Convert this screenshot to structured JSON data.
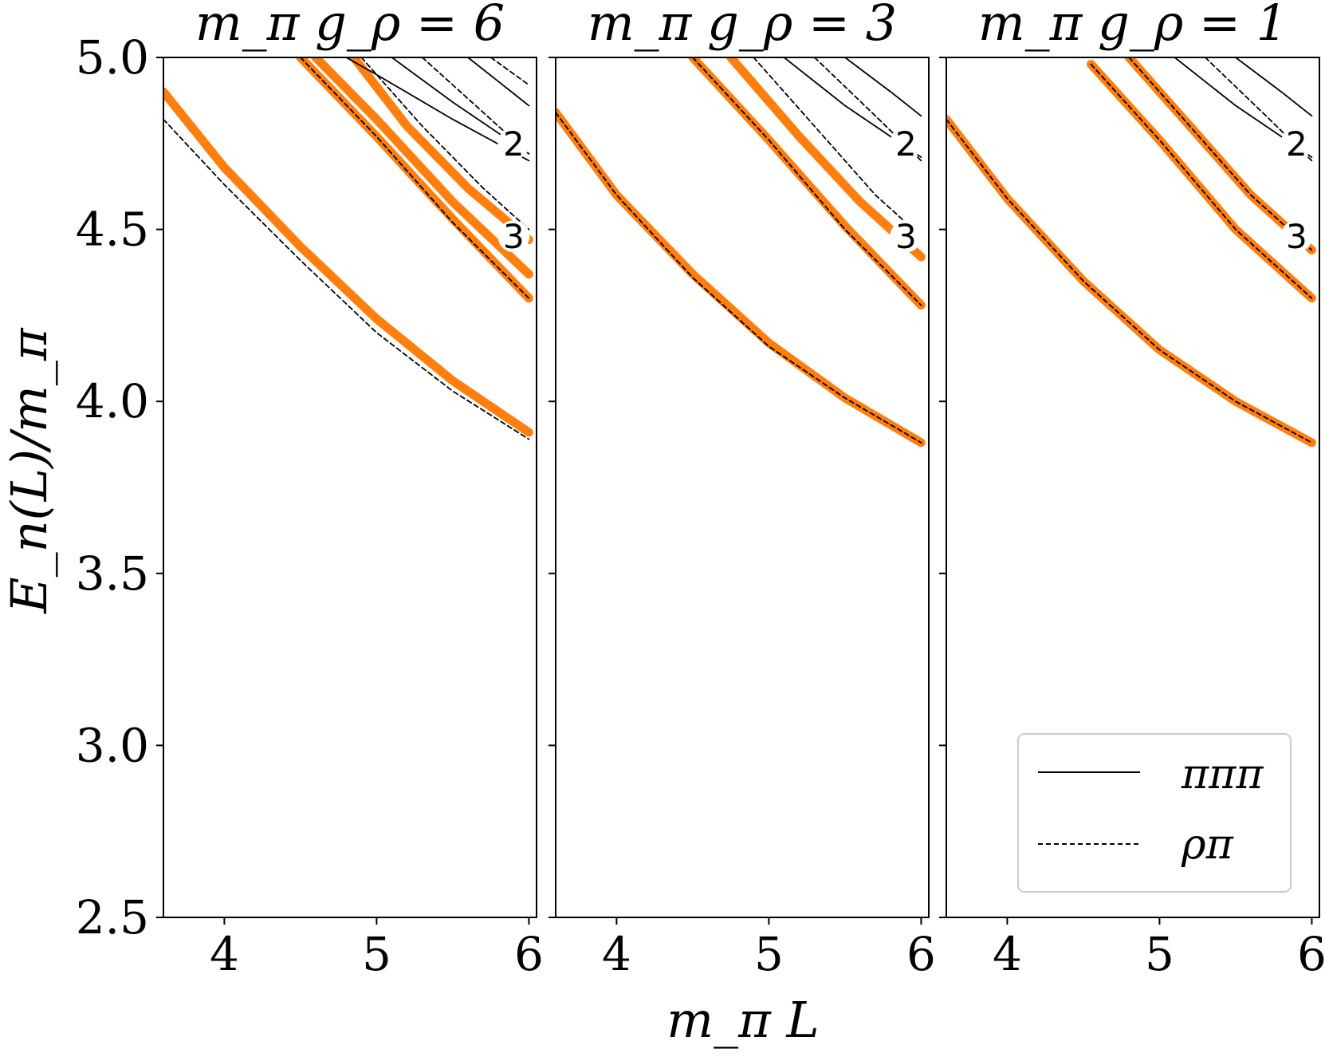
{
  "figure": {
    "ylabel": "E_n(L)/m_π",
    "xlabel": "m_π L",
    "y_ticks": [
      "2.5",
      "3.0",
      "3.5",
      "4.0",
      "4.5",
      "5.0"
    ],
    "x_ticks": [
      "4",
      "5",
      "6"
    ],
    "legend": [
      {
        "label": "πππ",
        "style": "solid"
      },
      {
        "label": "ρπ",
        "style": "dashed"
      }
    ],
    "colors": {
      "interacting": "#ff7f0e",
      "free": "#000000",
      "background": "#ffffff"
    }
  },
  "chart_data": [
    {
      "type": "line",
      "title": "m_π g_ρ = 6",
      "xlim": [
        3.6,
        6.05
      ],
      "ylim": [
        2.5,
        5.0
      ],
      "annotations": [
        "2",
        "3"
      ],
      "series": [
        {
          "name": "πππ",
          "style": "solid",
          "x": [
            4.8,
            5.0,
            5.5,
            6.0
          ],
          "y": [
            5.0,
            4.95,
            4.82,
            4.7
          ]
        },
        {
          "name": "πππ",
          "style": "solid",
          "x": [
            5.1,
            5.5,
            6.0
          ],
          "y": [
            5.0,
            4.87,
            4.72
          ]
        },
        {
          "name": "πππ",
          "style": "solid",
          "x": [
            5.6,
            5.8,
            6.0
          ],
          "y": [
            5.0,
            4.93,
            4.86
          ]
        },
        {
          "name": "ρπ",
          "style": "dashed",
          "x": [
            3.6,
            4.0,
            4.5,
            5.0,
            5.5,
            6.0
          ],
          "y": [
            4.82,
            4.63,
            4.41,
            4.2,
            4.03,
            3.89
          ]
        },
        {
          "name": "ρπ",
          "style": "dashed",
          "x": [
            4.5,
            5.0,
            5.5,
            6.0
          ],
          "y": [
            5.0,
            4.77,
            4.52,
            4.3
          ]
        },
        {
          "name": "ρπ",
          "style": "dashed",
          "x": [
            4.9,
            5.3,
            5.7,
            6.0
          ],
          "y": [
            5.0,
            4.8,
            4.62,
            4.5
          ]
        },
        {
          "name": "ρπ",
          "style": "dashed",
          "x": [
            5.3,
            5.6,
            6.0
          ],
          "y": [
            5.0,
            4.88,
            4.72
          ]
        },
        {
          "name": "ρπ",
          "style": "dashed",
          "x": [
            5.75,
            6.0
          ],
          "y": [
            5.0,
            4.92
          ]
        },
        {
          "name": "interacting",
          "style": "band",
          "x": [
            3.6,
            4.0,
            4.5,
            5.0,
            5.5,
            6.0
          ],
          "y": [
            4.9,
            4.68,
            4.45,
            4.24,
            4.06,
            3.91
          ]
        },
        {
          "name": "interacting",
          "style": "band",
          "x": [
            4.5,
            5.0,
            5.5,
            6.0
          ],
          "y": [
            5.0,
            4.77,
            4.53,
            4.3
          ]
        },
        {
          "name": "interacting",
          "style": "band",
          "x": [
            4.6,
            5.0,
            5.5,
            6.0
          ],
          "y": [
            5.0,
            4.82,
            4.58,
            4.37
          ]
        },
        {
          "name": "interacting",
          "style": "band",
          "x": [
            4.85,
            5.2,
            5.6,
            6.0
          ],
          "y": [
            5.0,
            4.8,
            4.62,
            4.47
          ]
        }
      ]
    },
    {
      "type": "line",
      "title": "m_π g_ρ = 3",
      "xlim": [
        3.6,
        6.05
      ],
      "ylim": [
        2.5,
        5.0
      ],
      "annotations": [
        "2",
        "3"
      ],
      "series": [
        {
          "name": "πππ",
          "style": "solid",
          "x": [
            5.1,
            5.5,
            6.0
          ],
          "y": [
            5.0,
            4.86,
            4.71
          ]
        },
        {
          "name": "πππ",
          "style": "solid",
          "x": [
            5.5,
            5.8,
            6.0
          ],
          "y": [
            5.0,
            4.9,
            4.83
          ]
        },
        {
          "name": "ρπ",
          "style": "dashed",
          "x": [
            3.6,
            4.0,
            4.5,
            5.0,
            5.5,
            6.0
          ],
          "y": [
            4.84,
            4.6,
            4.36,
            4.16,
            4.01,
            3.88
          ]
        },
        {
          "name": "ρπ",
          "style": "dashed",
          "x": [
            4.5,
            5.0,
            5.5,
            6.0
          ],
          "y": [
            5.0,
            4.76,
            4.5,
            4.28
          ]
        },
        {
          "name": "ρπ",
          "style": "dashed",
          "x": [
            4.9,
            5.3,
            5.7,
            6.0
          ],
          "y": [
            5.0,
            4.8,
            4.6,
            4.48
          ]
        },
        {
          "name": "ρπ",
          "style": "dashed",
          "x": [
            5.3,
            5.7,
            6.0
          ],
          "y": [
            5.0,
            4.83,
            4.7
          ]
        },
        {
          "name": "interacting",
          "style": "band",
          "x": [
            3.6,
            4.0,
            4.5,
            5.0,
            5.5,
            6.0
          ],
          "y": [
            4.84,
            4.6,
            4.37,
            4.17,
            4.01,
            3.88
          ]
        },
        {
          "name": "interacting",
          "style": "band",
          "x": [
            4.5,
            5.0,
            5.5,
            6.0
          ],
          "y": [
            5.0,
            4.76,
            4.51,
            4.28
          ]
        },
        {
          "name": "interacting",
          "style": "band",
          "x": [
            4.75,
            5.2,
            5.6,
            6.0
          ],
          "y": [
            5.0,
            4.77,
            4.58,
            4.42
          ]
        }
      ]
    },
    {
      "type": "line",
      "title": "m_π g_ρ = 1",
      "xlim": [
        3.6,
        6.05
      ],
      "ylim": [
        2.5,
        5.0
      ],
      "annotations": [
        "2",
        "3"
      ],
      "series": [
        {
          "name": "πππ",
          "style": "solid",
          "x": [
            5.1,
            5.5,
            6.0
          ],
          "y": [
            5.0,
            4.86,
            4.71
          ]
        },
        {
          "name": "πππ",
          "style": "solid",
          "x": [
            5.5,
            5.8,
            6.0
          ],
          "y": [
            5.0,
            4.9,
            4.83
          ]
        },
        {
          "name": "ρπ",
          "style": "dashed",
          "x": [
            3.6,
            4.0,
            4.5,
            5.0,
            5.5,
            6.0
          ],
          "y": [
            4.82,
            4.59,
            4.35,
            4.15,
            4.0,
            3.88
          ]
        },
        {
          "name": "ρπ",
          "style": "dashed",
          "x": [
            4.55,
            5.0,
            5.5,
            6.0
          ],
          "y": [
            4.98,
            4.76,
            4.5,
            4.3
          ]
        },
        {
          "name": "ρπ",
          "style": "dashed",
          "x": [
            4.8,
            5.2,
            5.6,
            6.0
          ],
          "y": [
            5.0,
            4.8,
            4.6,
            4.44
          ]
        },
        {
          "name": "ρπ",
          "style": "dashed",
          "x": [
            5.3,
            5.7,
            6.0
          ],
          "y": [
            5.0,
            4.83,
            4.7
          ]
        },
        {
          "name": "interacting",
          "style": "band",
          "x": [
            3.6,
            4.0,
            4.5,
            5.0,
            5.5,
            6.0
          ],
          "y": [
            4.82,
            4.59,
            4.35,
            4.15,
            4.0,
            3.88
          ]
        },
        {
          "name": "interacting",
          "style": "band",
          "x": [
            4.55,
            5.0,
            5.5,
            6.0
          ],
          "y": [
            4.98,
            4.76,
            4.5,
            4.3
          ]
        },
        {
          "name": "interacting",
          "style": "band",
          "x": [
            4.8,
            5.2,
            5.6,
            6.0
          ],
          "y": [
            5.0,
            4.8,
            4.6,
            4.44
          ]
        }
      ]
    }
  ]
}
